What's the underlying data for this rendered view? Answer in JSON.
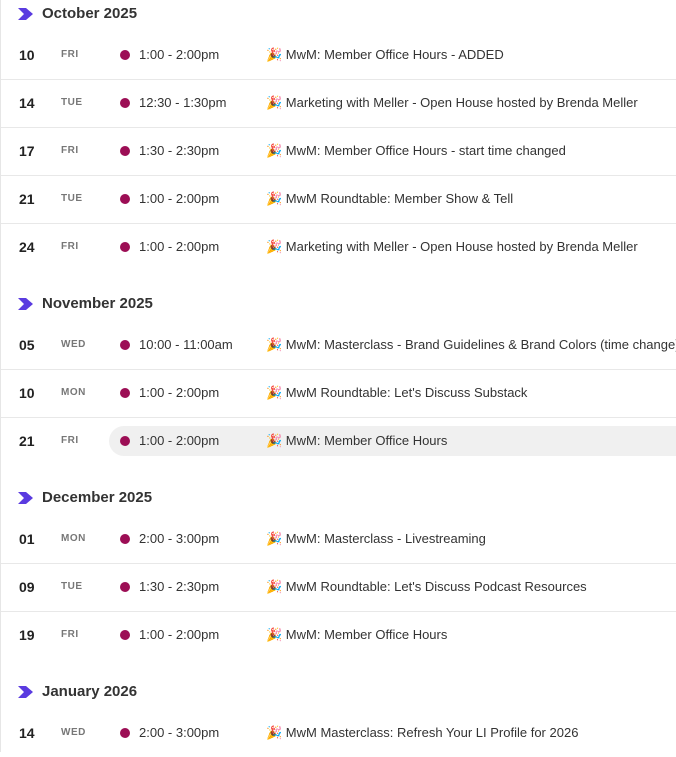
{
  "months": [
    {
      "label": "October 2025",
      "events": [
        {
          "day": "10",
          "weekday": "FRI",
          "time": "1:00 - 2:00pm",
          "title": "🎉 MwM: Member Office Hours - ADDED"
        },
        {
          "day": "14",
          "weekday": "TUE",
          "time": "12:30 - 1:30pm",
          "title": "🎉 Marketing with Meller - Open House hosted by Brenda Meller"
        },
        {
          "day": "17",
          "weekday": "FRI",
          "time": "1:30 - 2:30pm",
          "title": "🎉 MwM: Member Office Hours - start time changed"
        },
        {
          "day": "21",
          "weekday": "TUE",
          "time": "1:00 - 2:00pm",
          "title": "🎉 MwM Roundtable: Member Show & Tell"
        },
        {
          "day": "24",
          "weekday": "FRI",
          "time": "1:00 - 2:00pm",
          "title": "🎉 Marketing with Meller - Open House hosted by Brenda Meller"
        }
      ]
    },
    {
      "label": "November 2025",
      "events": [
        {
          "day": "05",
          "weekday": "WED",
          "time": "10:00 - 11:00am",
          "title": "🎉 MwM: Masterclass - Brand Guidelines & Brand Colors (time change)"
        },
        {
          "day": "10",
          "weekday": "MON",
          "time": "1:00 - 2:00pm",
          "title": "🎉 MwM Roundtable: Let's Discuss Substack"
        },
        {
          "day": "21",
          "weekday": "FRI",
          "time": "1:00 - 2:00pm",
          "title": "🎉 MwM: Member Office Hours",
          "hovered": true
        }
      ]
    },
    {
      "label": "December 2025",
      "events": [
        {
          "day": "01",
          "weekday": "MON",
          "time": "2:00 - 3:00pm",
          "title": "🎉 MwM: Masterclass - Livestreaming"
        },
        {
          "day": "09",
          "weekday": "TUE",
          "time": "1:30 - 2:30pm",
          "title": "🎉 MwM Roundtable: Let's Discuss Podcast Resources"
        },
        {
          "day": "19",
          "weekday": "FRI",
          "time": "1:00 - 2:00pm",
          "title": "🎉 MwM: Member Office Hours"
        }
      ]
    },
    {
      "label": "January 2026",
      "events": [
        {
          "day": "14",
          "weekday": "WED",
          "time": "2:00 - 3:00pm",
          "title": "🎉 MwM Masterclass: Refresh Your LI Profile for 2026"
        }
      ]
    }
  ]
}
